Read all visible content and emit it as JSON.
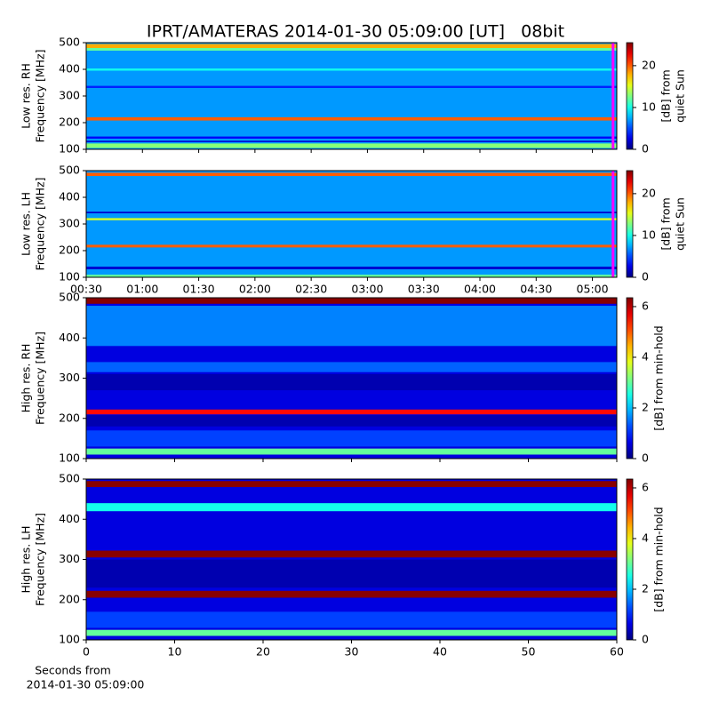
{
  "chart_data": [
    {
      "type": "spectrogram",
      "title": "IPRT/AMATERAS 2014-01-30 05:09:00 [UT]   08bit",
      "ylabel": [
        "Low res. RH",
        "Frequency [MHz]"
      ],
      "colorbar_label": [
        "[dB] from",
        "quiet Sun"
      ],
      "ylim": [
        100,
        500
      ],
      "yticks": [
        100,
        200,
        300,
        400,
        500
      ],
      "xlim": [
        30,
        313
      ],
      "xticks": [
        {
          "value": 30,
          "label": "00:30"
        },
        {
          "value": 60,
          "label": "01:00"
        },
        {
          "value": 90,
          "label": "01:30"
        },
        {
          "value": 120,
          "label": "02:00"
        },
        {
          "value": 150,
          "label": "02:30"
        },
        {
          "value": 180,
          "label": "03:00"
        },
        {
          "value": 210,
          "label": "03:30"
        },
        {
          "value": 240,
          "label": "04:00"
        },
        {
          "value": 270,
          "label": "04:30"
        },
        {
          "value": 300,
          "label": "05:00"
        }
      ],
      "show_xtick_labels": false,
      "clim": [
        0,
        25.5
      ],
      "cticks": [
        0,
        10,
        20
      ],
      "background": 7,
      "bands": [
        {
          "y0": 480,
          "y1": 495,
          "level": 18
        },
        {
          "y0": 470,
          "y1": 480,
          "level": 12
        },
        {
          "y0": 395,
          "y1": 403,
          "level": 10
        },
        {
          "y0": 330,
          "y1": 338,
          "level": 4
        },
        {
          "y0": 208,
          "y1": 220,
          "level": 20
        },
        {
          "y0": 140,
          "y1": 148,
          "level": 3
        },
        {
          "y0": 127,
          "y1": 132,
          "level": 2
        },
        {
          "y0": 105,
          "y1": 122,
          "level": 13
        }
      ],
      "vlines": [
        311
      ],
      "vline_color": "#ff00ff"
    },
    {
      "type": "spectrogram",
      "ylabel": [
        "Low res. LH",
        "Frequency [MHz]"
      ],
      "colorbar_label": [
        "[dB] from",
        "quiet Sun"
      ],
      "ylim": [
        100,
        500
      ],
      "yticks": [
        100,
        200,
        300,
        400,
        500
      ],
      "xlim": [
        30,
        313
      ],
      "xticks": [
        {
          "value": 30,
          "label": "00:30"
        },
        {
          "value": 60,
          "label": "01:00"
        },
        {
          "value": 90,
          "label": "01:30"
        },
        {
          "value": 120,
          "label": "02:00"
        },
        {
          "value": 150,
          "label": "02:30"
        },
        {
          "value": 180,
          "label": "03:00"
        },
        {
          "value": 210,
          "label": "03:30"
        },
        {
          "value": 240,
          "label": "04:00"
        },
        {
          "value": 270,
          "label": "04:30"
        },
        {
          "value": 300,
          "label": "05:00"
        }
      ],
      "show_xtick_labels": true,
      "clim": [
        0,
        25.5
      ],
      "cticks": [
        0,
        10,
        20
      ],
      "background": 7,
      "bands": [
        {
          "y0": 480,
          "y1": 492,
          "level": 20
        },
        {
          "y0": 340,
          "y1": 346,
          "level": 2
        },
        {
          "y0": 314,
          "y1": 322,
          "level": 15
        },
        {
          "y0": 212,
          "y1": 222,
          "level": 20
        },
        {
          "y0": 130,
          "y1": 140,
          "level": 2
        },
        {
          "y0": 100,
          "y1": 110,
          "level": 12
        }
      ],
      "vlines": [
        311
      ],
      "vline_color": "#ff00ff"
    },
    {
      "type": "spectrogram",
      "ylabel": [
        "High res. RH",
        "Frequency [MHz]"
      ],
      "colorbar_label": [
        "[dB] from min-hold"
      ],
      "ylim": [
        100,
        500
      ],
      "yticks": [
        100,
        200,
        300,
        400,
        500
      ],
      "xlim": [
        0,
        60
      ],
      "xticks": [
        0,
        10,
        20,
        30,
        40,
        50,
        60
      ],
      "show_xtick_labels": false,
      "clim": [
        0,
        6.35
      ],
      "cticks": [
        0,
        2,
        4,
        6
      ],
      "background": 0.6,
      "bands": [
        {
          "y0": 485,
          "y1": 500,
          "level": 6.3
        },
        {
          "y0": 380,
          "y1": 480,
          "level": 1.6
        },
        {
          "y0": 315,
          "y1": 340,
          "level": 1.4
        },
        {
          "y0": 270,
          "y1": 310,
          "level": 0.3
        },
        {
          "y0": 210,
          "y1": 222,
          "level": 5.5
        },
        {
          "y0": 180,
          "y1": 208,
          "level": 0.3
        },
        {
          "y0": 130,
          "y1": 170,
          "level": 1.2
        },
        {
          "y0": 110,
          "y1": 125,
          "level": 3
        }
      ]
    },
    {
      "type": "spectrogram",
      "ylabel": [
        "High res. LH",
        "Frequency [MHz]"
      ],
      "colorbar_label": [
        "[dB] from min-hold"
      ],
      "ylim": [
        100,
        500
      ],
      "yticks": [
        100,
        200,
        300,
        400,
        500
      ],
      "xlim": [
        0,
        60
      ],
      "xticks": [
        0,
        10,
        20,
        30,
        40,
        50,
        60
      ],
      "show_xtick_labels": true,
      "xlabel": [
        "Seconds from",
        "2014-01-30 05:09:00"
      ],
      "clim": [
        0,
        6.35
      ],
      "cticks": [
        0,
        2,
        4,
        6
      ],
      "background": 0.6,
      "bands": [
        {
          "y0": 480,
          "y1": 495,
          "level": 6.3
        },
        {
          "y0": 420,
          "y1": 440,
          "level": 2.5
        },
        {
          "y0": 305,
          "y1": 322,
          "level": 6.3
        },
        {
          "y0": 230,
          "y1": 300,
          "level": 0.3
        },
        {
          "y0": 205,
          "y1": 222,
          "level": 6.3
        },
        {
          "y0": 130,
          "y1": 170,
          "level": 1.2
        },
        {
          "y0": 110,
          "y1": 125,
          "level": 3
        }
      ]
    }
  ]
}
